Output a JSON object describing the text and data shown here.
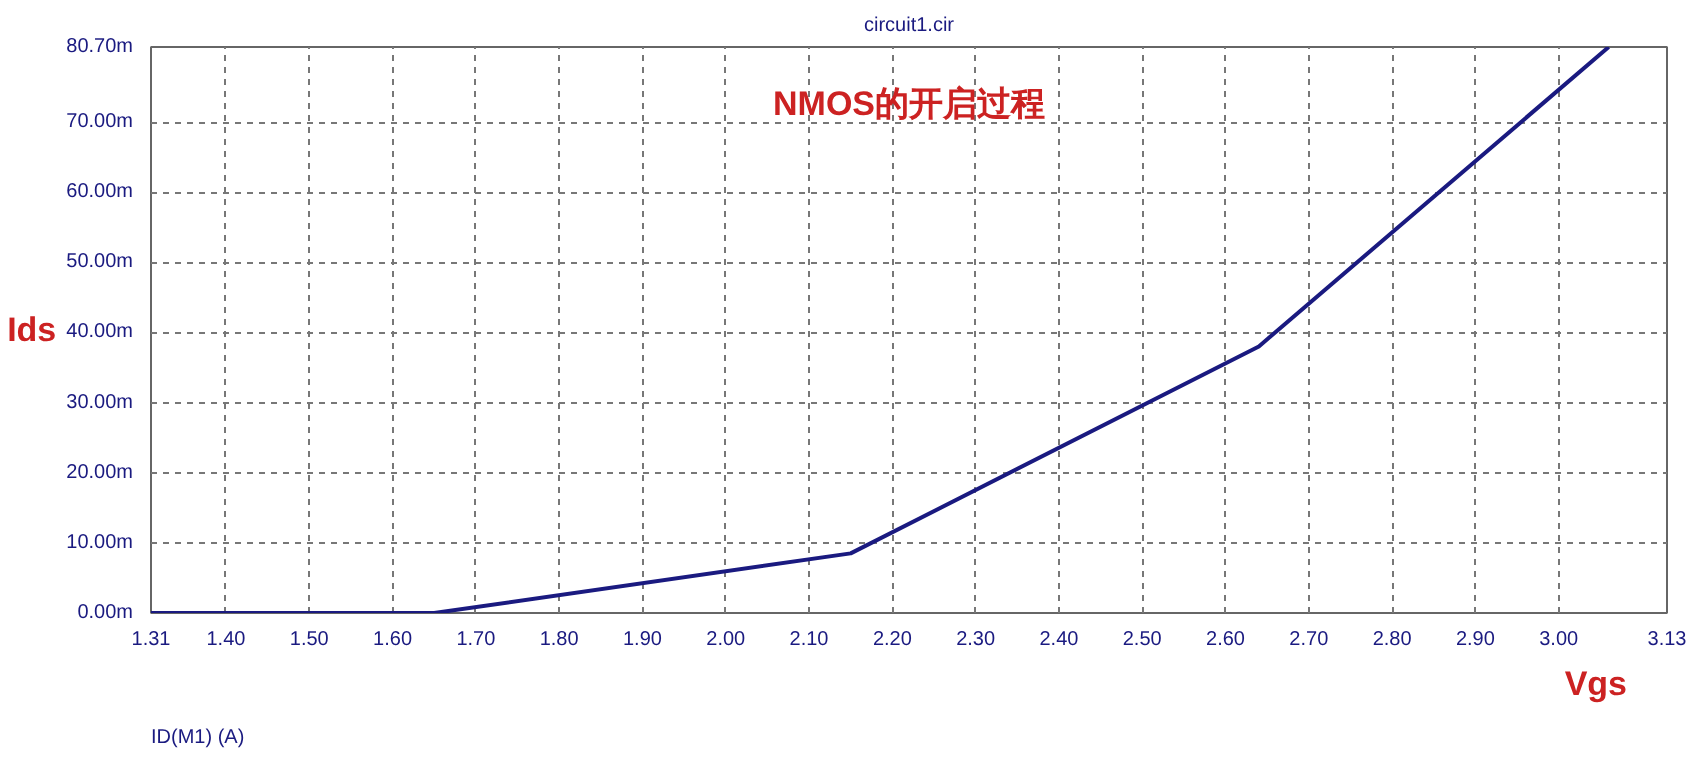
{
  "chart_data": {
    "type": "line",
    "title": "NMOS的开启过程",
    "subtitle": "circuit1.cir",
    "xlabel": "Vgs",
    "ylabel": "Ids",
    "annotations": [
      "ID(M1) (A)"
    ],
    "x": [
      1.31,
      1.65,
      2.15,
      2.64,
      3.06
    ],
    "series": [
      {
        "color": "#1a1a80",
        "values": [
          0,
          0,
          8.5,
          38,
          80.7
        ]
      }
    ],
    "xlim": [
      1.31,
      3.13
    ],
    "ylim": [
      0,
      80.7
    ],
    "xticks": [
      1.31,
      {
        "value": 1.4,
        "label": "1.40"
      },
      {
        "value": 1.5,
        "label": "1.50"
      },
      {
        "value": 1.6,
        "label": "1.60"
      },
      {
        "value": 1.7,
        "label": "1.70"
      },
      {
        "value": 1.8,
        "label": "1.80"
      },
      {
        "value": 1.9,
        "label": "1.90"
      },
      {
        "value": 2,
        "label": "2.00"
      },
      {
        "value": 2.1,
        "label": "2.10"
      },
      {
        "value": 2.2,
        "label": "2.20"
      },
      {
        "value": 2.3,
        "label": "2.30"
      },
      {
        "value": 2.4,
        "label": "2.40"
      },
      {
        "value": 2.5,
        "label": "2.50"
      },
      {
        "value": 2.6,
        "label": "2.60"
      },
      {
        "value": 2.7,
        "label": "2.70"
      },
      {
        "value": 2.8,
        "label": "2.80"
      },
      {
        "value": 2.9,
        "label": "2.90"
      },
      {
        "value": 3,
        "label": "3.00"
      },
      3.13
    ],
    "yticks": [
      {
        "value": 0,
        "label": "0.00m"
      },
      {
        "value": 10,
        "label": "10.00m"
      },
      {
        "value": 20,
        "label": "20.00m"
      },
      {
        "value": 30,
        "label": "30.00m"
      },
      {
        "value": 40,
        "label": "40.00m"
      },
      {
        "value": 50,
        "label": "50.00m"
      },
      {
        "value": 60,
        "label": "60.00m"
      },
      {
        "value": 70,
        "label": "70.00m"
      },
      {
        "value": 80.7,
        "label": "80.70m"
      }
    ],
    "grid": true,
    "line_style": "solid",
    "marker": "none"
  }
}
